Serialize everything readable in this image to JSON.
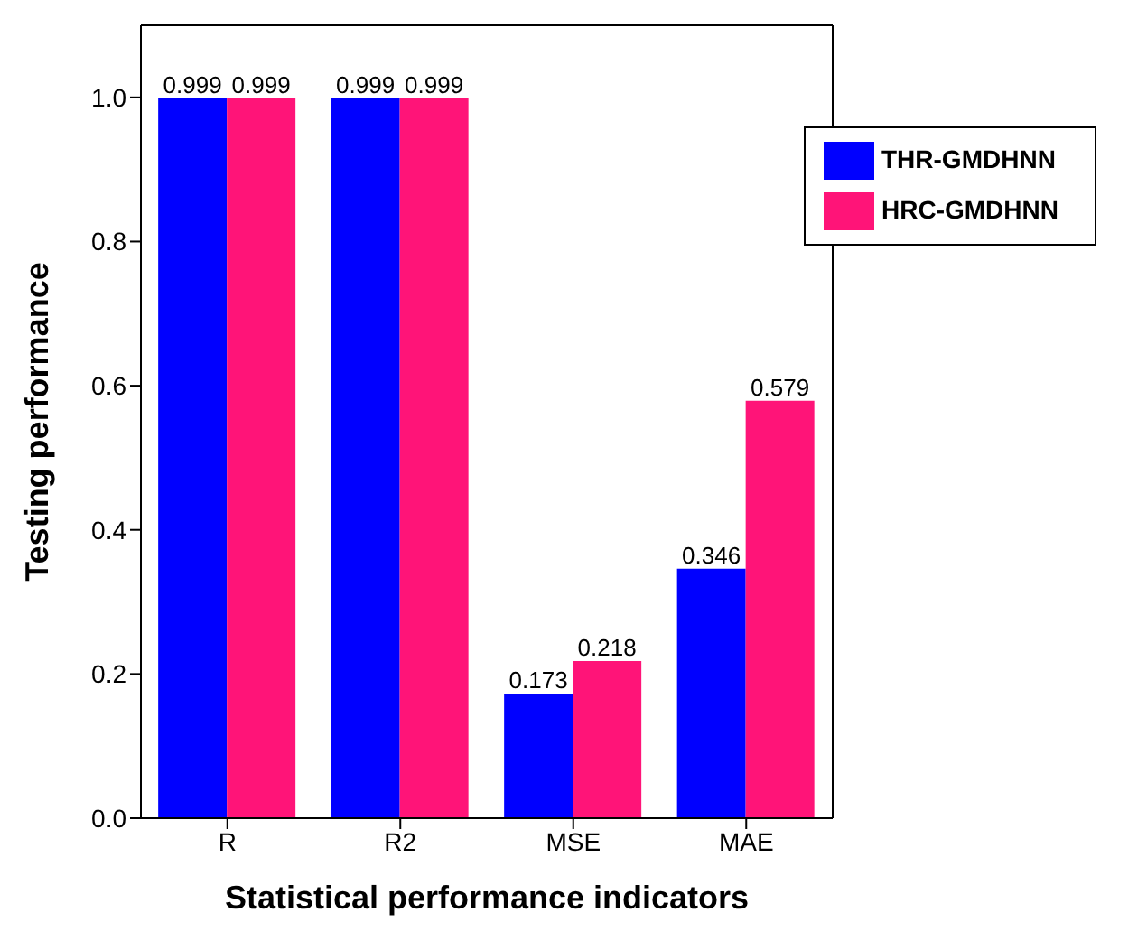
{
  "chart_data": {
    "type": "bar",
    "xlabel": "Statistical performance indicators",
    "ylabel": "Testing performance",
    "categories": [
      "R",
      "R2",
      "MSE",
      "MAE"
    ],
    "series": [
      {
        "name": "THR-GMDHNN",
        "color": "#0000ff",
        "values": [
          0.999,
          0.999,
          0.173,
          0.346
        ]
      },
      {
        "name": "HRC-GMDHNN",
        "color": "#ff1478",
        "values": [
          0.999,
          0.999,
          0.218,
          0.579
        ]
      }
    ],
    "ylim": [
      0,
      1.1
    ],
    "yticks": [
      {
        "value": 0,
        "label": "0.0"
      },
      {
        "value": 0.2,
        "label": "0.2"
      },
      {
        "value": 0.4,
        "label": "0.4"
      },
      {
        "value": 0.6,
        "label": "0.6"
      },
      {
        "value": 0.8,
        "label": "0.8"
      },
      {
        "value": 1,
        "label": "1.0"
      }
    ],
    "data_labels": true,
    "grid": false,
    "legend": "top right"
  }
}
